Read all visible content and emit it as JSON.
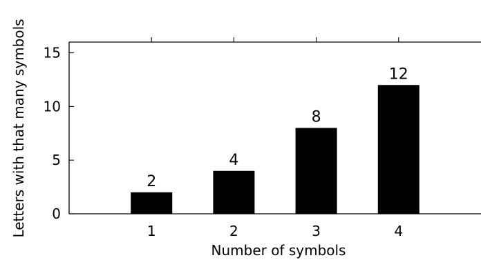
{
  "chart_data": {
    "type": "bar",
    "categories": [
      "1",
      "2",
      "3",
      "4"
    ],
    "values": [
      2,
      4,
      8,
      12
    ],
    "data_labels": [
      "2",
      "4",
      "8",
      "12"
    ],
    "title": "",
    "xlabel": "Number of symbols",
    "ylabel": "Letters with that many symbols",
    "xlim": [
      0,
      5
    ],
    "ylim": [
      0,
      16
    ],
    "yticks": [
      0,
      5,
      10,
      15
    ],
    "grid": false,
    "legend": "none",
    "bar_color": "#000000",
    "axis_color": "#000000"
  }
}
